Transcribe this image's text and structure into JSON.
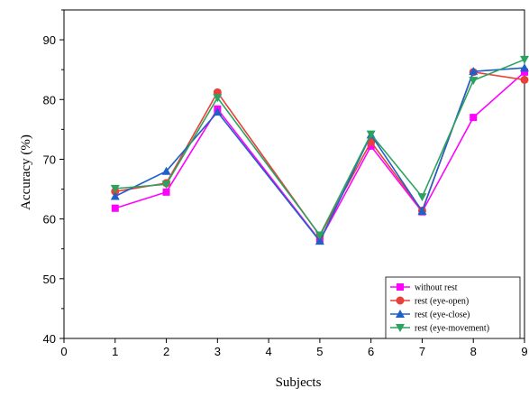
{
  "chart_data": {
    "type": "line",
    "xlabel": "Subjects",
    "ylabel": "Accuracy (%)",
    "xlim": [
      0,
      9
    ],
    "ylim": [
      40,
      95
    ],
    "x_ticks": [
      "0",
      "1",
      "2",
      "3",
      "4",
      "5",
      "6",
      "7",
      "8",
      "9"
    ],
    "y_ticks": [
      "40",
      "50",
      "60",
      "70",
      "80",
      "90"
    ],
    "x": [
      1,
      2,
      3,
      5,
      6,
      7,
      8,
      9
    ],
    "legend_position": "bottom-right",
    "grid": false,
    "series": [
      {
        "name": "without rest",
        "color": "#ff00ff",
        "marker": "square",
        "values": [
          61.8,
          64.5,
          78.4,
          56.4,
          72.2,
          61.2,
          77.0,
          84.6
        ]
      },
      {
        "name": "rest (eye-open)",
        "color": "#e8413b",
        "marker": "circle",
        "values": [
          64.6,
          66.0,
          81.2,
          57.2,
          72.9,
          61.4,
          84.6,
          83.3
        ]
      },
      {
        "name": "rest (eye-close)",
        "color": "#1f5fc8",
        "marker": "triangle-up",
        "values": [
          63.8,
          68.0,
          77.9,
          56.3,
          74.1,
          61.3,
          84.7,
          85.3
        ]
      },
      {
        "name": "rest (eye-movement)",
        "color": "#2ca25f",
        "marker": "triangle-down",
        "values": [
          65.1,
          65.8,
          80.3,
          57.3,
          74.2,
          63.7,
          83.2,
          86.7
        ]
      }
    ]
  }
}
